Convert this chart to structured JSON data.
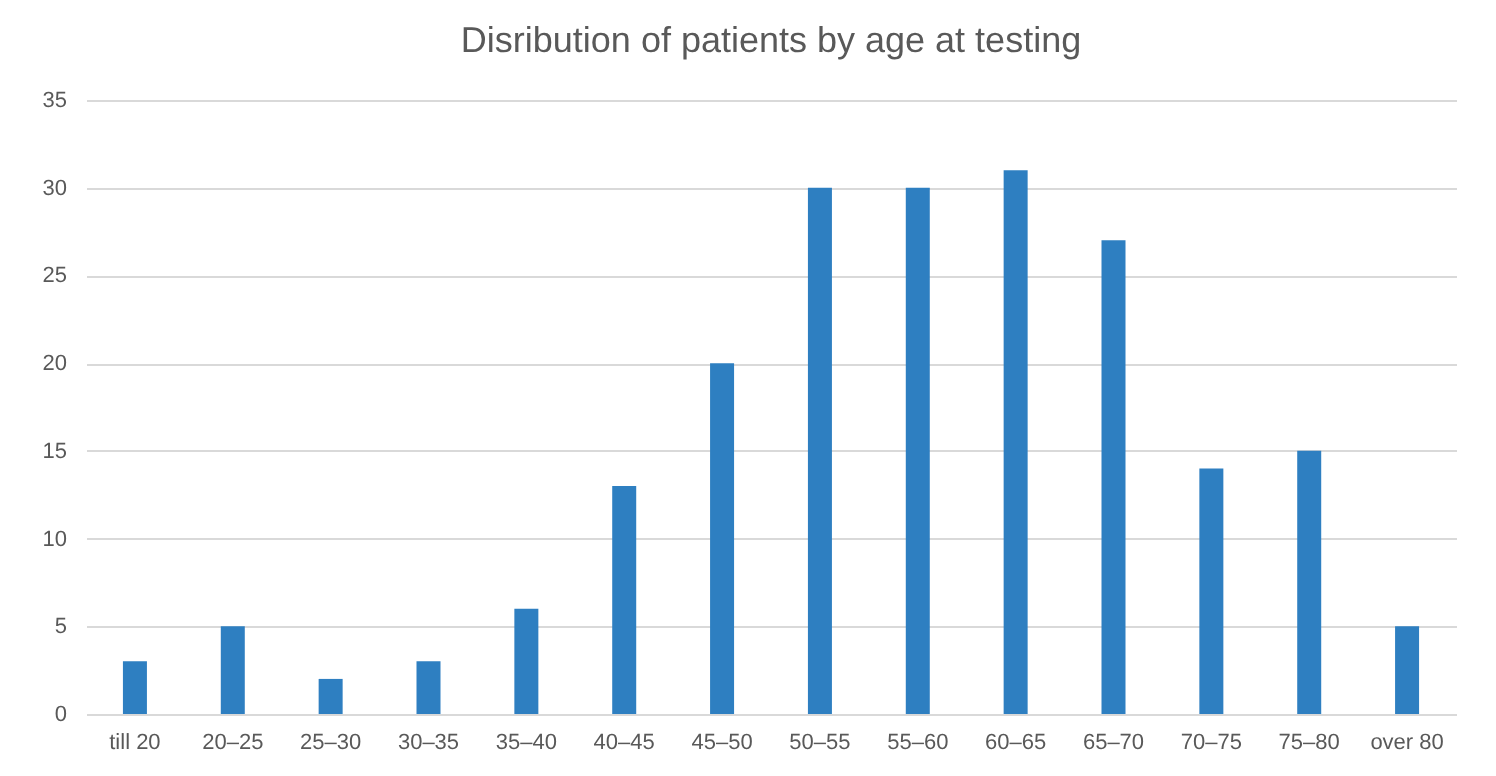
{
  "chart_data": {
    "type": "bar",
    "title": "Disribution of patients by age at testing",
    "categories": [
      "till 20",
      "20–25",
      "25–30",
      "30–35",
      "35–40",
      "40–45",
      "45–50",
      "50–55",
      "55–60",
      "60–65",
      "65–70",
      "70–75",
      "75–80",
      "over 80"
    ],
    "values": [
      3,
      5,
      2,
      3,
      6,
      13,
      20,
      30,
      30,
      31,
      27,
      14,
      15,
      5
    ],
    "color": "#2e7fc1",
    "ylim": [
      0,
      35
    ],
    "yticks": [
      0,
      5,
      10,
      15,
      20,
      25,
      30,
      35
    ],
    "grid": "y"
  }
}
